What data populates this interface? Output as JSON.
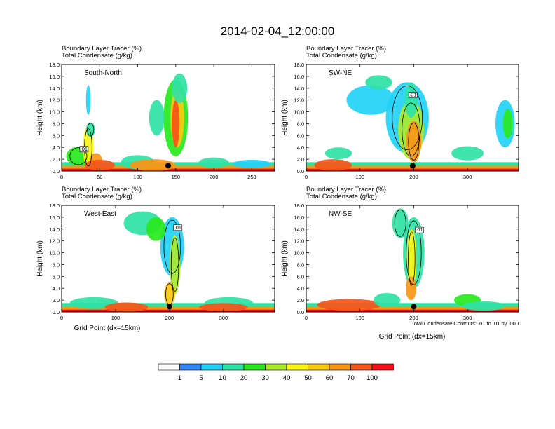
{
  "title": "2014-02-04_12:00:00",
  "panel_subtitle_1": "Boundary Layer Tracer   (%)",
  "panel_subtitle_2": "Total Condensate   (g/kg)",
  "ylabel": "Height (km)",
  "xlabel": "Grid Point (dx=15km)",
  "contour_note": "Total Condensate Contours: .01 to .01 by .000",
  "contour_label": ".01",
  "chart_data": [
    {
      "type": "heatmap",
      "panel": "South-North",
      "ylim": [
        0,
        18
      ],
      "yticks": [
        "0.0",
        "2.0",
        "4.0",
        "6.0",
        "8.0",
        "10.0",
        "12.0",
        "14.0",
        "16.0",
        "18.0"
      ],
      "xlim": [
        0,
        280
      ],
      "xticks": [
        "0",
        "50",
        "100",
        "150",
        "200",
        "250"
      ],
      "xtick_values": [
        0,
        50,
        100,
        150,
        200,
        250
      ],
      "marker_x": 140,
      "marker_y": 0.9
    },
    {
      "type": "heatmap",
      "panel": "SW-NE",
      "ylim": [
        0,
        18
      ],
      "yticks": [
        "0.0",
        "2.0",
        "4.0",
        "6.0",
        "8.0",
        "10.0",
        "12.0",
        "14.0",
        "16.0",
        "18.0"
      ],
      "xlim": [
        0,
        395
      ],
      "xticks": [
        "0",
        "100",
        "200",
        "300"
      ],
      "xtick_values": [
        0,
        100,
        200,
        300
      ],
      "marker_x": 198,
      "marker_y": 0.9
    },
    {
      "type": "heatmap",
      "panel": "West-East",
      "ylim": [
        0,
        18
      ],
      "yticks": [
        "0.0",
        "2.0",
        "4.0",
        "6.0",
        "8.0",
        "10.0",
        "12.0",
        "14.0",
        "16.0",
        "18.0"
      ],
      "xlim": [
        0,
        395
      ],
      "xticks": [
        "0",
        "100",
        "200",
        "300"
      ],
      "xtick_values": [
        0,
        100,
        200,
        300
      ],
      "marker_x": 200,
      "marker_y": 0.9
    },
    {
      "type": "heatmap",
      "panel": "NW-SE",
      "ylim": [
        0,
        18
      ],
      "yticks": [
        "0.0",
        "2.0",
        "4.0",
        "6.0",
        "8.0",
        "10.0",
        "12.0",
        "14.0",
        "16.0",
        "18.0"
      ],
      "xlim": [
        0,
        395
      ],
      "xticks": [
        "0",
        "100",
        "200",
        "300"
      ],
      "xtick_values": [
        0,
        100,
        200,
        300
      ],
      "marker_x": 200,
      "marker_y": 0.9
    }
  ],
  "colorbar": {
    "labels": [
      "1",
      "5",
      "10",
      "20",
      "30",
      "40",
      "50",
      "60",
      "70",
      "100"
    ],
    "colors": [
      "#ffffff",
      "#2f87f6",
      "#22d2f6",
      "#2fe2a6",
      "#27e91d",
      "#aaec2c",
      "#fbf612",
      "#fbc90f",
      "#f89616",
      "#f6541a",
      "#f60e1a"
    ]
  }
}
